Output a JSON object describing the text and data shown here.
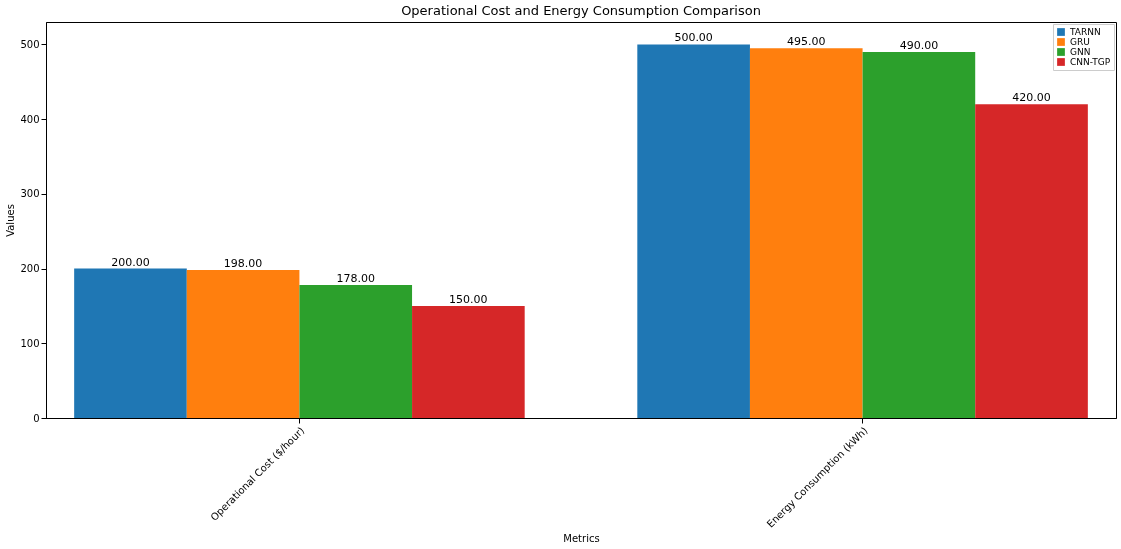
{
  "chart_data": {
    "type": "bar",
    "title": "Operational Cost and Energy Consumption Comparison",
    "xlabel": "Metrics",
    "ylabel": "Values",
    "categories": [
      "Operational Cost ($/hour)",
      "Energy Consumption (kWh)"
    ],
    "series": [
      {
        "name": "TARNN",
        "color": "#1f77b4",
        "values": [
          200,
          500
        ],
        "value_labels": [
          "200.00",
          "500.00"
        ]
      },
      {
        "name": "GRU",
        "color": "#ff7f0e",
        "values": [
          198,
          495
        ],
        "value_labels": [
          "198.00",
          "495.00"
        ]
      },
      {
        "name": "GNN",
        "color": "#2ca02c",
        "values": [
          178,
          490
        ],
        "value_labels": [
          "178.00",
          "490.00"
        ]
      },
      {
        "name": "CNN-TGP",
        "color": "#d62728",
        "values": [
          150,
          420
        ],
        "value_labels": [
          "150.00",
          "420.00"
        ]
      }
    ],
    "ylim": [
      0,
      530
    ],
    "yticks": [
      0,
      100,
      200,
      300,
      400,
      500
    ],
    "grid": false,
    "legend": "top right"
  }
}
